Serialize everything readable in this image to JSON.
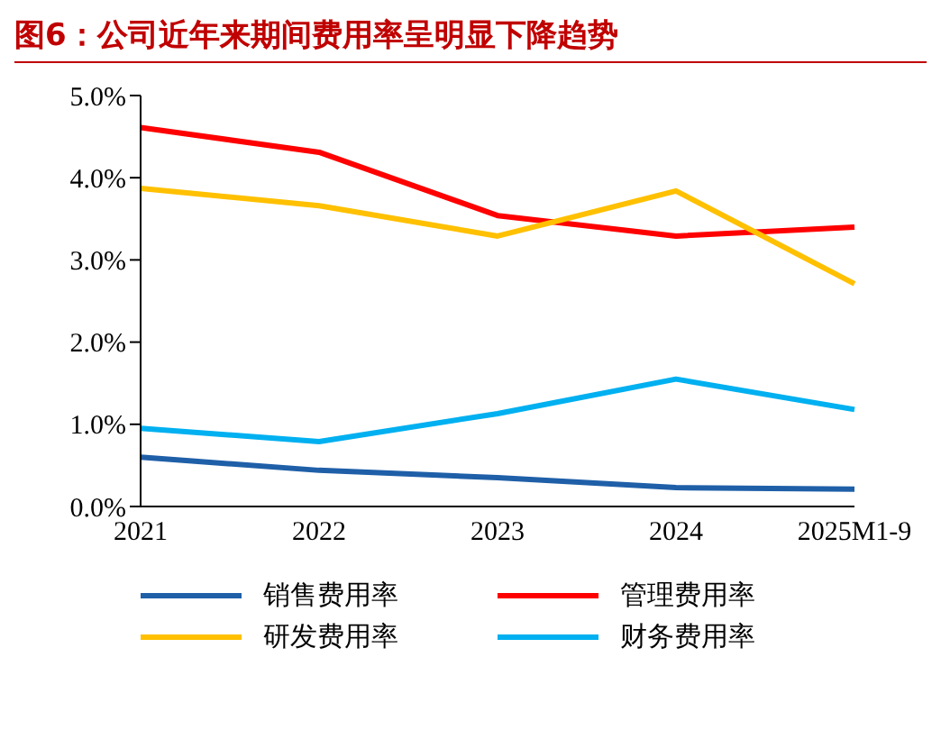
{
  "chart_data": {
    "type": "line",
    "title": "图6：公司近年来期间费用率呈明显下降趋势",
    "categories": [
      "2021",
      "2022",
      "2023",
      "2024",
      "2025M1-9"
    ],
    "series": [
      {
        "name": "销售费用率",
        "color": "#1f5fa8",
        "values": [
          0.6,
          0.44,
          0.35,
          0.23,
          0.21
        ]
      },
      {
        "name": "管理费用率",
        "color": "#ff0000",
        "values": [
          4.61,
          4.31,
          3.54,
          3.29,
          3.4
        ]
      },
      {
        "name": "研发费用率",
        "color": "#ffc000",
        "values": [
          3.87,
          3.66,
          3.29,
          3.84,
          2.71
        ]
      },
      {
        "name": "财务费用率",
        "color": "#00b0f0",
        "values": [
          0.95,
          0.79,
          1.13,
          1.55,
          1.18
        ]
      }
    ],
    "ylim": [
      0,
      5
    ],
    "yticks": [
      {
        "value": 0,
        "label": "0.0%"
      },
      {
        "value": 1,
        "label": "1.0%"
      },
      {
        "value": 2,
        "label": "2.0%"
      },
      {
        "value": 3,
        "label": "3.0%"
      },
      {
        "value": 4,
        "label": "4.0%"
      },
      {
        "value": 5,
        "label": "5.0%"
      }
    ],
    "grid": false,
    "legend": "bottom",
    "marker": "none",
    "line_style": "solid"
  }
}
